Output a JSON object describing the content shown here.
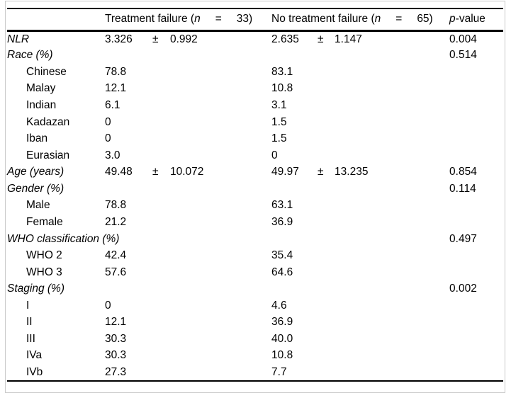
{
  "table": {
    "header": {
      "group1": {
        "text": "Treatment failure (",
        "n": "n",
        "eq": "=",
        "count": "33)"
      },
      "group2": {
        "text": "No treatment failure (",
        "n": "n",
        "eq": "=",
        "count": "65)"
      },
      "pvalue": {
        "italic": "p",
        "rest": "-value"
      }
    },
    "rows": [
      {
        "label": "NLR",
        "italic": true,
        "c1": "3.326",
        "c1pm": "±",
        "c1sd": "0.992",
        "c2": "2.635",
        "c2pm": "±",
        "c2sd": "1.147",
        "p": "0.004"
      },
      {
        "label": "Race (%)",
        "italic": true,
        "p": "0.514"
      },
      {
        "label": "Chinese",
        "indent": true,
        "c1": "78.8",
        "c2": "83.1"
      },
      {
        "label": "Malay",
        "indent": true,
        "c1": "12.1",
        "c2": "10.8"
      },
      {
        "label": "Indian",
        "indent": true,
        "c1": "6.1",
        "c2": "3.1"
      },
      {
        "label": "Kadazan",
        "indent": true,
        "c1": "0",
        "c2": "1.5"
      },
      {
        "label": "Iban",
        "indent": true,
        "c1": "0",
        "c2": "1.5"
      },
      {
        "label": "Eurasian",
        "indent": true,
        "c1": "3.0",
        "c2": "0"
      },
      {
        "label": "Age (years)",
        "italic": true,
        "c1": "49.48",
        "c1pm": "±",
        "c1sd": "10.072",
        "c2": "49.97",
        "c2pm": "±",
        "c2sd": "13.235",
        "p": "0.854"
      },
      {
        "label": "Gender (%)",
        "italic": true,
        "p": "0.114"
      },
      {
        "label": "Male",
        "indent": true,
        "c1": "78.8",
        "c2": "63.1"
      },
      {
        "label": "Female",
        "indent": true,
        "c1": "21.2",
        "c2": "36.9"
      },
      {
        "label": "WHO classification (%)",
        "italic": true,
        "p": "0.497"
      },
      {
        "label": "WHO 2",
        "indent": true,
        "c1": "42.4",
        "c2": "35.4"
      },
      {
        "label": "WHO 3",
        "indent": true,
        "c1": "57.6",
        "c2": "64.6"
      },
      {
        "label": "Staging (%)",
        "italic": true,
        "p": "0.002"
      },
      {
        "label": "I",
        "indent": true,
        "c1": "0",
        "c2": "4.6"
      },
      {
        "label": "II",
        "indent": true,
        "c1": "12.1",
        "c2": "36.9"
      },
      {
        "label": "III",
        "indent": true,
        "c1": "30.3",
        "c2": "40.0"
      },
      {
        "label": "IVa",
        "indent": true,
        "c1": "30.3",
        "c2": "10.8"
      },
      {
        "label": "IVb",
        "indent": true,
        "c1": "27.3",
        "c2": "7.7"
      }
    ]
  }
}
